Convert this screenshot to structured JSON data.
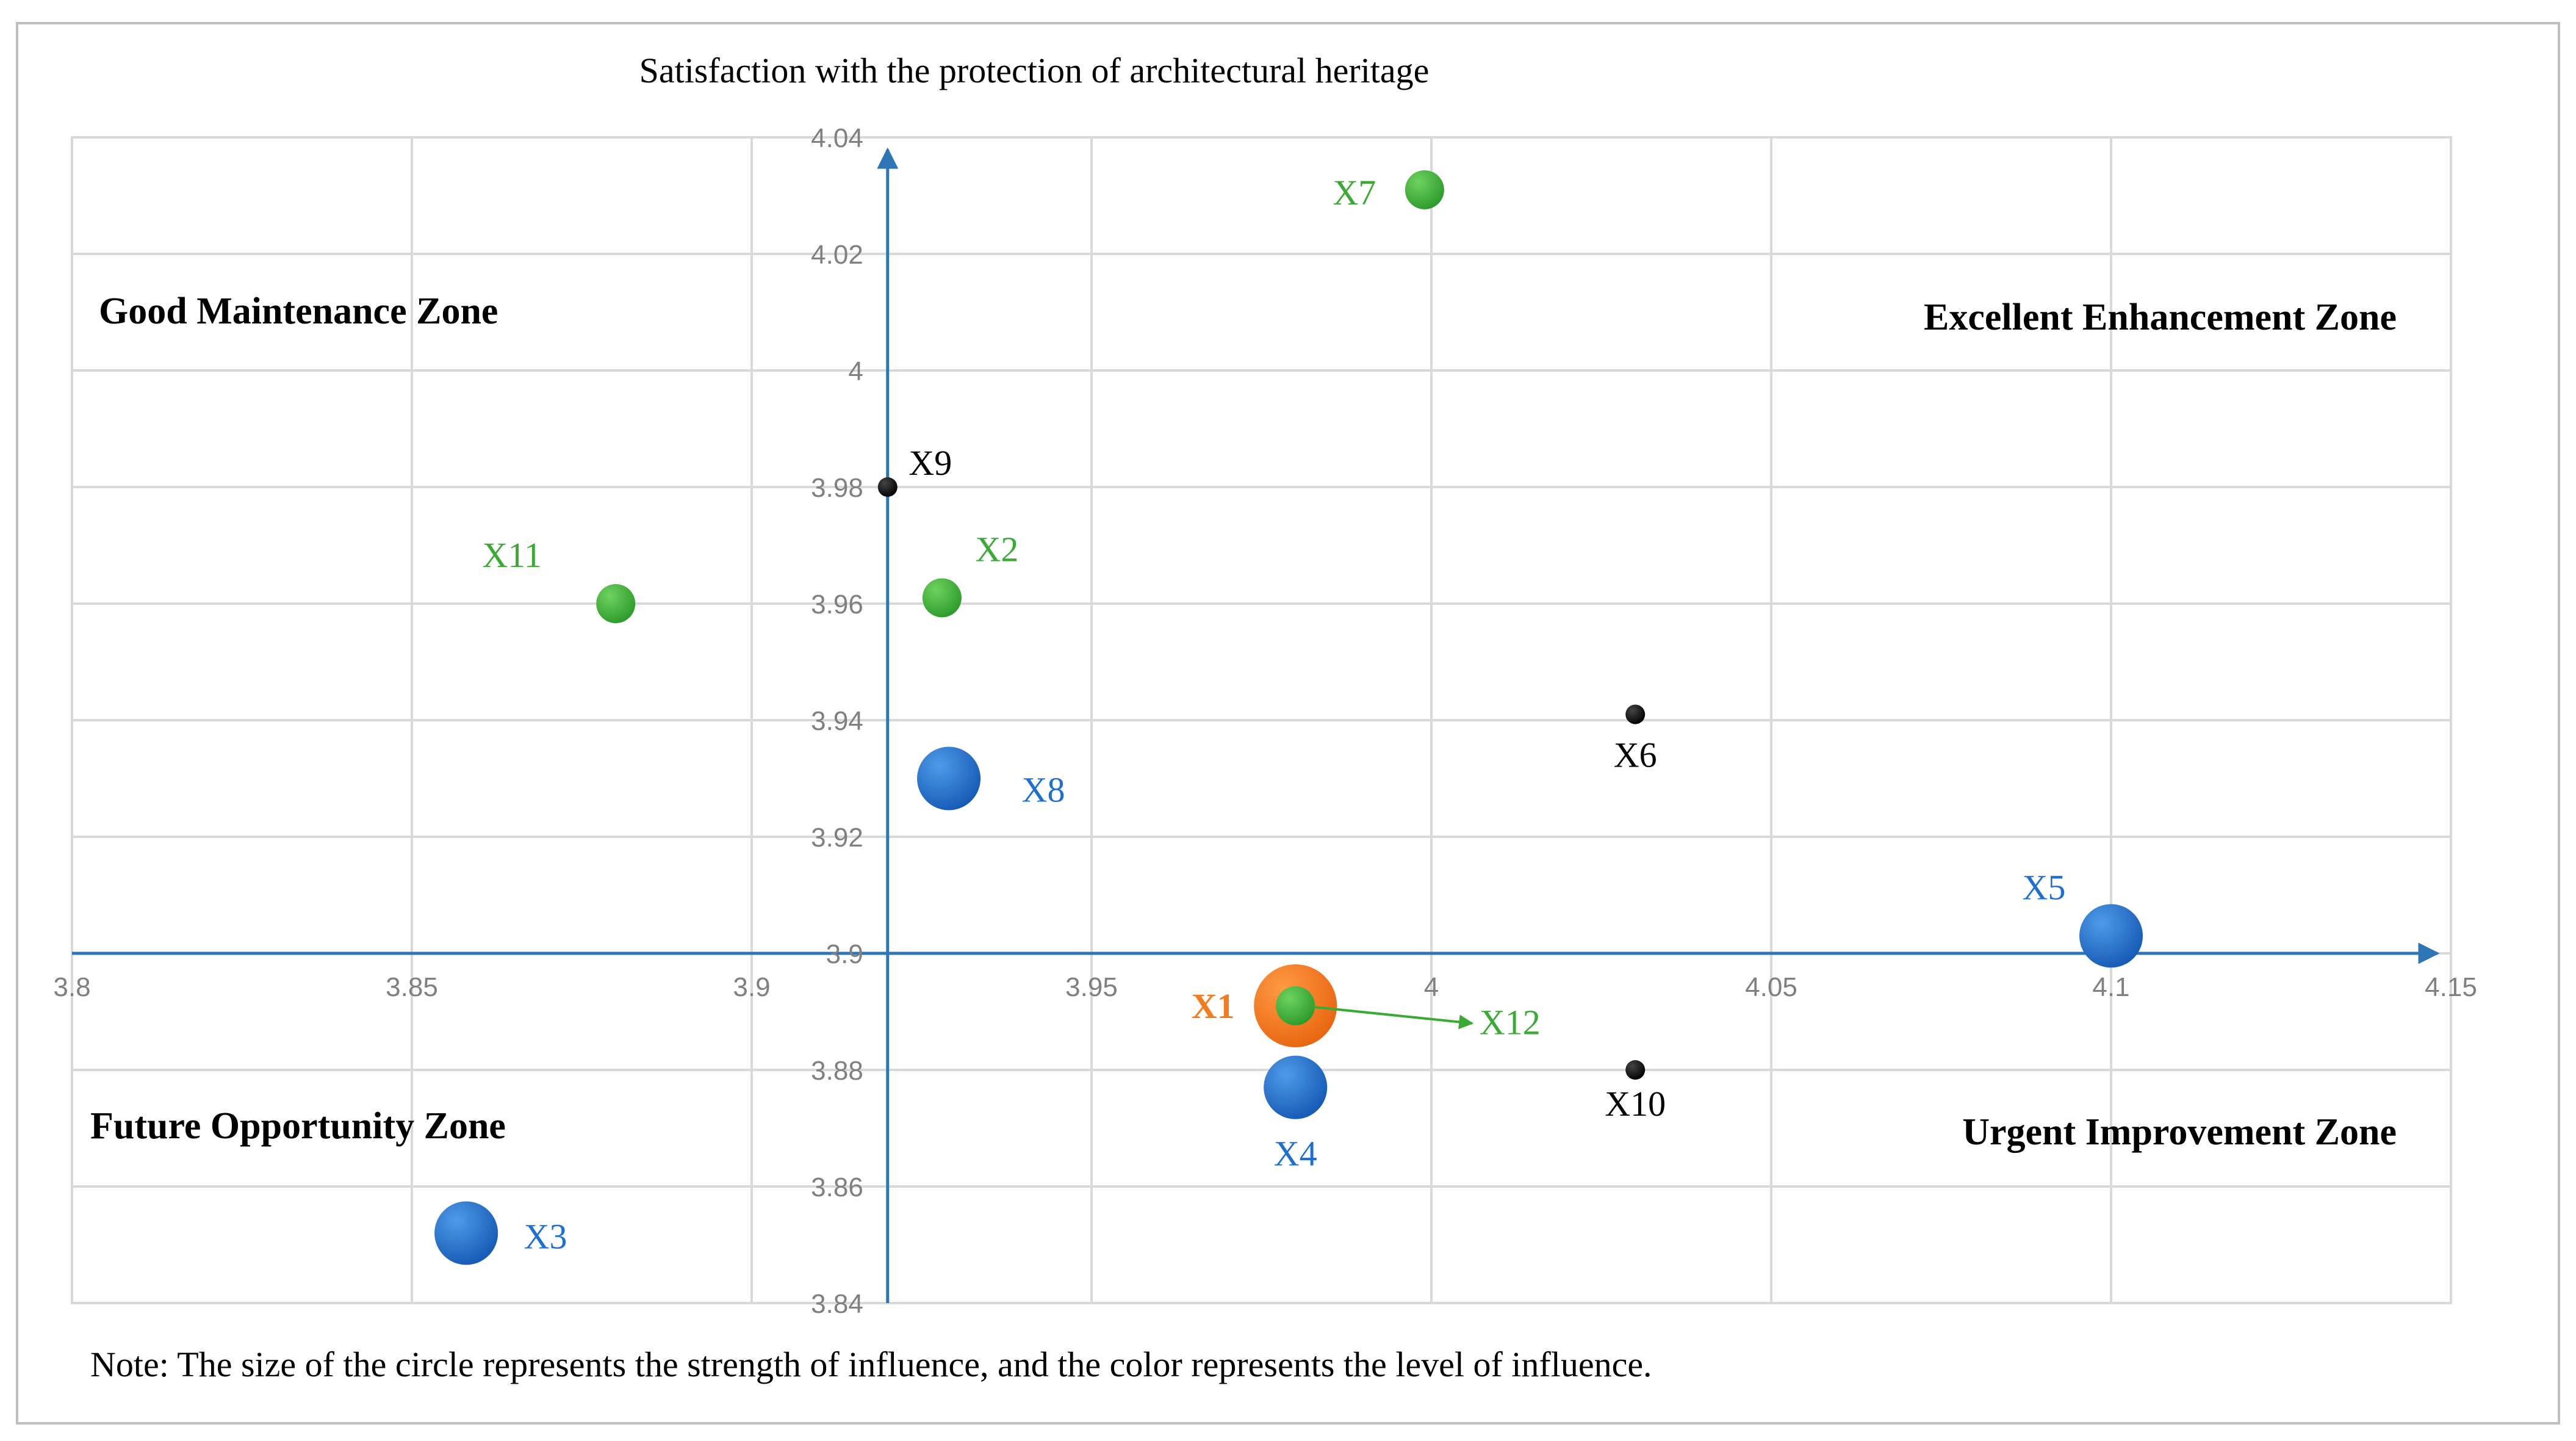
{
  "chart_data": {
    "type": "scatter",
    "title": "Satisfaction with the protection of architectural heritage",
    "xlim": [
      3.8,
      4.15
    ],
    "ylim": [
      3.84,
      4.04
    ],
    "x_ticks": [
      3.8,
      3.85,
      3.9,
      3.95,
      4,
      4.05,
      4.1,
      4.15
    ],
    "x_tick_labels": [
      "3.8",
      "3.85",
      "3.9",
      "3.95",
      "4",
      "4.05",
      "4.1",
      "4.15"
    ],
    "y_ticks": [
      3.84,
      3.86,
      3.88,
      3.9,
      3.92,
      3.94,
      3.96,
      3.98,
      4,
      4.02,
      4.04
    ],
    "y_tick_labels": [
      "3.84",
      "3.86",
      "3.88",
      "3.9",
      "3.92",
      "3.94",
      "3.96",
      "3.98",
      "4",
      "4.02",
      "4.04"
    ],
    "axis_cross": {
      "x": 3.92,
      "y": 3.9
    },
    "grid": true,
    "zones": [
      {
        "name": "Good Maintenance Zone",
        "quadrant": "top-left"
      },
      {
        "name": "Excellent Enhancement Zone",
        "quadrant": "top-right"
      },
      {
        "name": "Future Opportunity Zone",
        "quadrant": "bottom-left"
      },
      {
        "name": "Urgent Improvement Zone",
        "quadrant": "bottom-right"
      }
    ],
    "points": [
      {
        "label": "X1",
        "x": 3.98,
        "y": 3.891,
        "size": "large",
        "color": "#f47c20",
        "label_color": "#f47c20",
        "label_bold": true
      },
      {
        "label": "X12",
        "x": 3.98,
        "y": 3.891,
        "size": "small",
        "color": "#3aaa35",
        "label_color": "#3aaa35",
        "arrow_to": {
          "x": 4.006,
          "y": 3.888
        }
      },
      {
        "label": "X2",
        "x": 3.928,
        "y": 3.961,
        "size": "small",
        "color": "#3aaa35",
        "label_color": "#3aaa35"
      },
      {
        "label": "X3",
        "x": 3.858,
        "y": 3.852,
        "size": "medium",
        "color": "#1f6fd1",
        "label_color": "#1f6fd1"
      },
      {
        "label": "X4",
        "x": 3.98,
        "y": 3.877,
        "size": "medium",
        "color": "#1f6fd1",
        "label_color": "#1f6fd1"
      },
      {
        "label": "X5",
        "x": 4.1,
        "y": 3.903,
        "size": "medium",
        "color": "#1f6fd1",
        "label_color": "#1f6fd1"
      },
      {
        "label": "X6",
        "x": 4.03,
        "y": 3.941,
        "size": "tiny",
        "color": "#000000",
        "label_color": "#000000"
      },
      {
        "label": "X7",
        "x": 3.999,
        "y": 4.031,
        "size": "small",
        "color": "#3aaa35",
        "label_color": "#3aaa35"
      },
      {
        "label": "X8",
        "x": 3.929,
        "y": 3.93,
        "size": "medium",
        "color": "#1f6fd1",
        "label_color": "#1f6fd1"
      },
      {
        "label": "X9",
        "x": 3.92,
        "y": 3.98,
        "size": "tiny",
        "color": "#000000",
        "label_color": "#000000"
      },
      {
        "label": "X10",
        "x": 4.03,
        "y": 3.88,
        "size": "tiny",
        "color": "#000000",
        "label_color": "#000000"
      },
      {
        "label": "X11",
        "x": 3.88,
        "y": 3.96,
        "size": "small",
        "color": "#3aaa35",
        "label_color": "#3aaa35"
      }
    ],
    "note": "Note:  The size of the circle represents the strength of influence, and the color represents the level of influence."
  }
}
